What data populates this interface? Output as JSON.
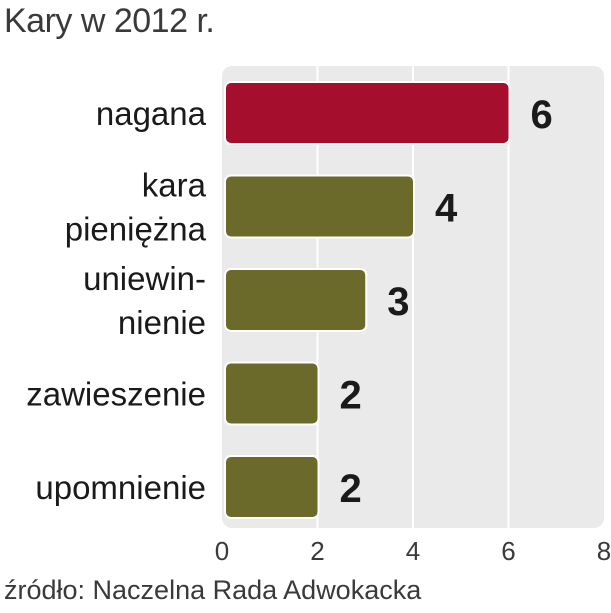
{
  "chart_data": {
    "type": "bar",
    "orientation": "horizontal",
    "title": "Kary w 2012 r.",
    "source": "źródło: Naczelna Rada Adwokacka",
    "categories": [
      [
        "nagana"
      ],
      [
        "kara",
        "pieniężna"
      ],
      [
        "uniewin-",
        "nienie"
      ],
      [
        "zawieszenie"
      ],
      [
        "upomnienie"
      ]
    ],
    "values": [
      6,
      4,
      3,
      2,
      2
    ],
    "value_labels": [
      "6",
      "4",
      "3",
      "2",
      "2"
    ],
    "xlim": [
      0,
      8
    ],
    "xticks": [
      "0",
      "2",
      "4",
      "6",
      "8"
    ],
    "grid": true,
    "colors": {
      "highlight": "#a50f2d",
      "default": "#6b6a2a",
      "panel": "#eaeaea",
      "grid": "#ffffff"
    },
    "highlight_index": 0
  }
}
